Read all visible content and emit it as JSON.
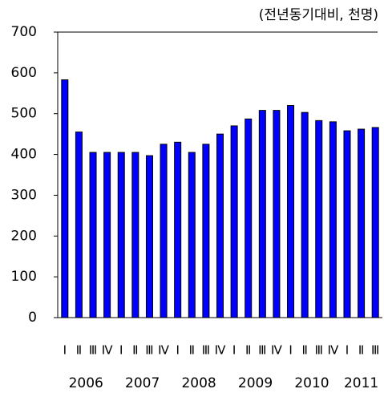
{
  "chart_data": {
    "type": "bar",
    "annotation": "(전년동기대비, 천명)",
    "categories": [
      "Ⅰ",
      "Ⅱ",
      "Ⅲ",
      "Ⅳ",
      "Ⅰ",
      "Ⅱ",
      "Ⅲ",
      "Ⅳ",
      "Ⅰ",
      "Ⅱ",
      "Ⅲ",
      "Ⅳ",
      "Ⅰ",
      "Ⅱ",
      "Ⅲ",
      "Ⅳ",
      "Ⅰ",
      "Ⅱ",
      "Ⅲ",
      "Ⅳ",
      "Ⅰ",
      "Ⅱ",
      "Ⅲ"
    ],
    "years": [
      "2006",
      "2007",
      "2008",
      "2009",
      "2010",
      "2011"
    ],
    "values": [
      583,
      455,
      405,
      405,
      405,
      405,
      397,
      425,
      430,
      405,
      425,
      450,
      470,
      487,
      508,
      508,
      520,
      503,
      483,
      480,
      458,
      462,
      466
    ],
    "color": "#0000ff",
    "ylim": [
      0,
      700
    ],
    "yticks": [
      0,
      100,
      200,
      300,
      400,
      500,
      600,
      700
    ]
  }
}
